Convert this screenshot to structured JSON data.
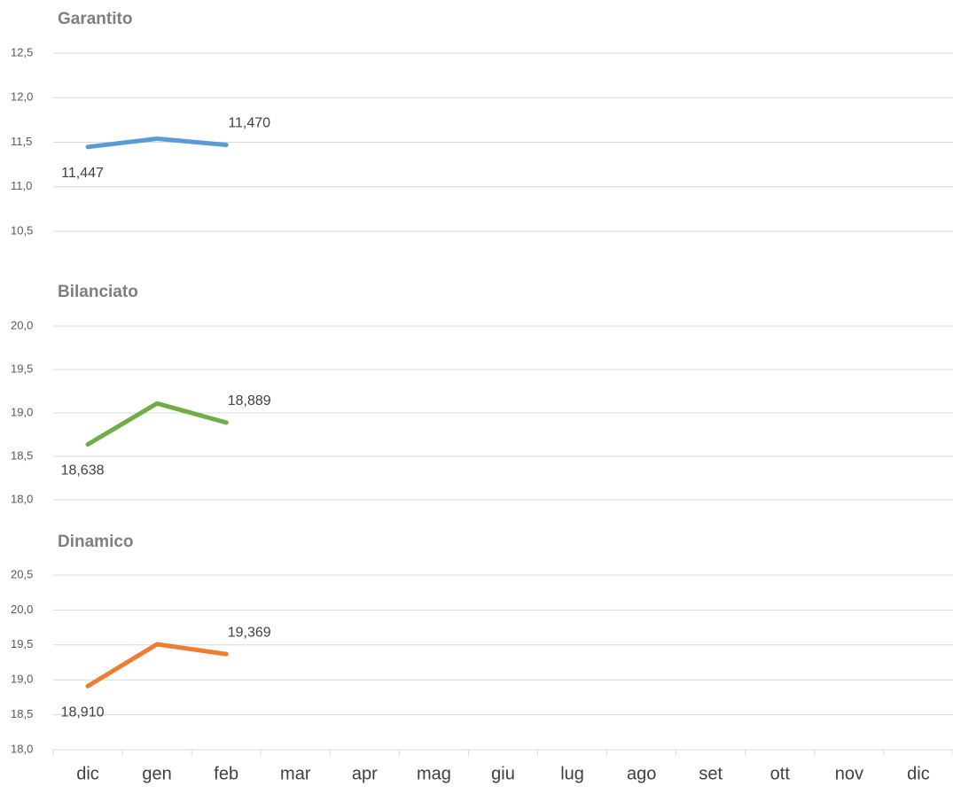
{
  "chart_data": [
    {
      "type": "line",
      "title": "Garantito",
      "series": [
        {
          "color": "#5b9bd5",
          "values": [
            11.447,
            11.54,
            11.47,
            null,
            null,
            null,
            null,
            null,
            null,
            null,
            null,
            null,
            null
          ],
          "value_labels": [
            "11,447",
            null,
            "11,470",
            null,
            null,
            null,
            null,
            null,
            null,
            null,
            null,
            null,
            null
          ]
        }
      ],
      "ylim": [
        10.5,
        12.5
      ],
      "yticks": [
        {
          "value": 10.5,
          "label": "10,5"
        },
        {
          "value": 11,
          "label": "11,0"
        },
        {
          "value": 11.5,
          "label": "11,5"
        },
        {
          "value": 12,
          "label": "12,0"
        },
        {
          "value": 12.5,
          "label": "12,5"
        }
      ],
      "grid": true
    },
    {
      "type": "line",
      "title": "Bilanciato",
      "series": [
        {
          "color": "#70ad47",
          "values": [
            18.638,
            19.11,
            18.889,
            null,
            null,
            null,
            null,
            null,
            null,
            null,
            null,
            null,
            null
          ],
          "value_labels": [
            "18,638",
            null,
            "18,889",
            null,
            null,
            null,
            null,
            null,
            null,
            null,
            null,
            null,
            null
          ]
        }
      ],
      "ylim": [
        18,
        20
      ],
      "yticks": [
        {
          "value": 18,
          "label": "18,0"
        },
        {
          "value": 18.5,
          "label": "18,5"
        },
        {
          "value": 19,
          "label": "19,0"
        },
        {
          "value": 19.5,
          "label": "19,5"
        },
        {
          "value": 20,
          "label": "20,0"
        }
      ],
      "grid": true
    },
    {
      "type": "line",
      "title": "Dinamico",
      "categories": [
        "dic",
        "gen",
        "feb",
        "mar",
        "apr",
        "mag",
        "giu",
        "lug",
        "ago",
        "set",
        "ott",
        "nov",
        "dic"
      ],
      "series": [
        {
          "color": "#ed7d31",
          "values": [
            18.91,
            19.51,
            19.369,
            null,
            null,
            null,
            null,
            null,
            null,
            null,
            null,
            null,
            null
          ],
          "value_labels": [
            "18,910",
            null,
            "19,369",
            null,
            null,
            null,
            null,
            null,
            null,
            null,
            null,
            null,
            null
          ]
        }
      ],
      "ylim": [
        18,
        20.5
      ],
      "yticks": [
        {
          "value": 18,
          "label": "18,0"
        },
        {
          "value": 18.5,
          "label": "18,5"
        },
        {
          "value": 19,
          "label": "19,0"
        },
        {
          "value": 19.5,
          "label": "19,5"
        },
        {
          "value": 20,
          "label": "20,0"
        },
        {
          "value": 20.5,
          "label": "20,5"
        }
      ],
      "grid": true
    }
  ]
}
